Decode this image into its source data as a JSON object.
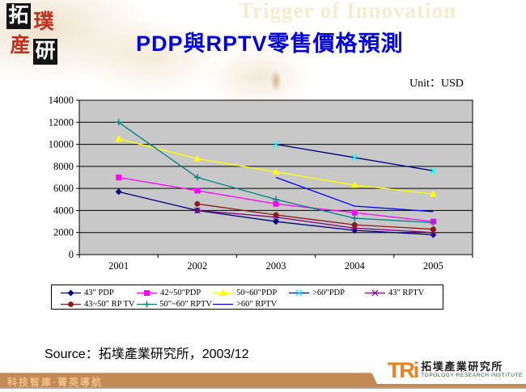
{
  "header": {
    "watermark": "Trigger of Innovation",
    "logo_blocks": [
      "拓",
      "璞",
      "産",
      "研"
    ],
    "title": "PDP與RPTV零售價格預測"
  },
  "chart": {
    "unit_label": "Unit：USD"
  },
  "chart_data": {
    "type": "line",
    "title": "PDP與RPTV零售價格預測",
    "categories": [
      "2001",
      "2002",
      "2003",
      "2004",
      "2005"
    ],
    "yticks": [
      "0",
      "2000",
      "4000",
      "6000",
      "8000",
      "10000",
      "12000",
      "14000"
    ],
    "ylim": [
      0,
      14000
    ],
    "ytick_step": 2000,
    "grid": "horizontal",
    "plot_bg": "#c8c8c8",
    "legend_position": "bottom",
    "series": [
      {
        "name": "43\" PDP",
        "color": "#000080",
        "marker": "diamond",
        "values": [
          5700,
          4000,
          3000,
          2200,
          1800
        ]
      },
      {
        "name": "42~50\"PDP",
        "color": "#ff00ff",
        "marker": "square",
        "values": [
          7000,
          5800,
          4600,
          3800,
          3000
        ]
      },
      {
        "name": "50~60\"PDP",
        "color": "#ffff00",
        "marker": "triangle",
        "values": [
          10500,
          8700,
          7500,
          6300,
          5500
        ]
      },
      {
        "name": ">60\"PDP",
        "color": "#000080",
        "marker": "x",
        "marker_color": "#00ffff",
        "values": [
          null,
          null,
          10000,
          8800,
          7600
        ]
      },
      {
        "name": "43\" RPTV",
        "color": "#800080",
        "marker": "star",
        "values": [
          null,
          4000,
          3400,
          2400,
          2000
        ]
      },
      {
        "name": "43~50\" RP TV",
        "color": "#8b1a1a",
        "marker": "circle",
        "values": [
          null,
          4600,
          3600,
          2700,
          2300
        ]
      },
      {
        "name": "50\"~60\" RPTV",
        "color": "#008080",
        "marker": "plus",
        "values": [
          12000,
          7000,
          5000,
          3300,
          2900
        ]
      },
      {
        "name": ">60\" RPTV",
        "color": "#0000ff",
        "marker": "none",
        "values": [
          null,
          null,
          7000,
          4400,
          3900
        ]
      }
    ]
  },
  "source": "Source：拓墣產業研究所，2003/12",
  "footer": {
    "slogan": "科技智庫·菁英導航",
    "tri_wordmark": "TRi",
    "tri_name_zh": "拓墣產業研究所",
    "tri_name_en": "TOPOLOGY RESEARCH INSTITUTE"
  }
}
